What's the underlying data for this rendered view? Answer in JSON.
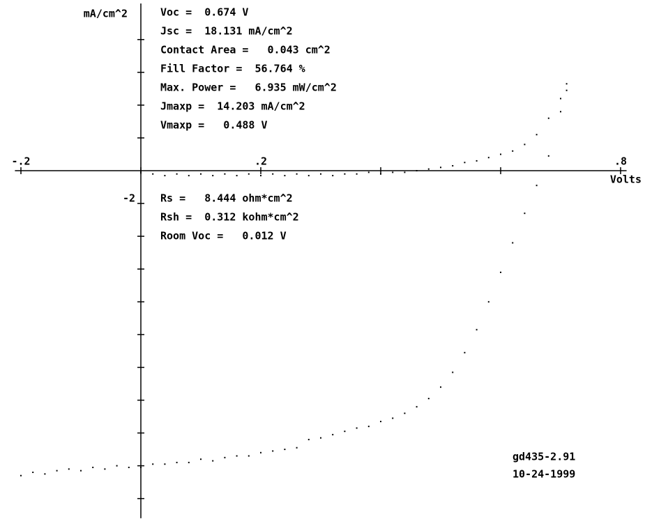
{
  "chart_data": {
    "type": "scatter",
    "x_label": "Volts",
    "y_label": "mA/cm^2",
    "xlim": [
      -0.21,
      0.81
    ],
    "ylim": [
      -21.2,
      10.2
    ],
    "xticks": [
      {
        "value": -0.2,
        "label": "-.2"
      },
      {
        "value": 0,
        "label": null
      },
      {
        "value": 0.2,
        "label": ".2"
      },
      {
        "value": 0.4,
        "label": null
      },
      {
        "value": 0.6,
        "label": null
      },
      {
        "value": 0.8,
        "label": ".8"
      }
    ],
    "yticks": [
      {
        "value": -20,
        "label": null
      },
      {
        "value": -18,
        "label": null
      },
      {
        "value": -16,
        "label": null
      },
      {
        "value": -14,
        "label": null
      },
      {
        "value": -12,
        "label": null
      },
      {
        "value": -10,
        "label": null
      },
      {
        "value": -8,
        "label": null
      },
      {
        "value": -6,
        "label": null
      },
      {
        "value": -4,
        "label": null
      },
      -2,
      {
        "value": 2,
        "label": null
      },
      {
        "value": 4,
        "label": null
      },
      {
        "value": 6,
        "label": null
      },
      {
        "value": 8,
        "label": null
      }
    ],
    "notes_top": [
      "Voc =  0.674 V",
      "Jsc =  18.131 mA/cm^2",
      "Contact Area =   0.043 cm^2",
      "Fill Factor =  56.764 %",
      "Max. Power =   6.935 mW/cm^2",
      "Jmaxp =  14.203 mA/cm^2",
      "Vmaxp =   0.488 V"
    ],
    "notes_middle": [
      "Rs =   8.444 ohm*cm^2",
      "Rsh =  0.312 kohm*cm^2",
      "Room Voc =   0.012 V"
    ],
    "sample_id": "gd435-2.91",
    "date": "10-24-1999",
    "series": [
      {
        "color": "#000000",
        "x": [
          -0.2,
          -0.18,
          -0.16,
          -0.14,
          -0.12,
          -0.1,
          -0.08,
          -0.06,
          -0.04,
          -0.02,
          0,
          0.02,
          0.04,
          0.06,
          0.08,
          0.1,
          0.12,
          0.14,
          0.16,
          0.18,
          0.2,
          0.22,
          0.24,
          0.26,
          0.28,
          0.3,
          0.32,
          0.34,
          0.36,
          0.38,
          0.4,
          0.42,
          0.44,
          0.46,
          0.48,
          0.5,
          0.52,
          0.54,
          0.56,
          0.58,
          0.6,
          0.62,
          0.64,
          0.66,
          0.68,
          0.7,
          0.71
        ],
        "values": [
          -18.6,
          -18.4,
          -18.5,
          -18.3,
          -18.2,
          -18.3,
          -18.1,
          -18.2,
          -18.0,
          -18.1,
          -18.1,
          -17.9,
          -17.9,
          -17.8,
          -17.8,
          -17.6,
          -17.7,
          -17.5,
          -17.4,
          -17.4,
          -17.2,
          -17.1,
          -17.0,
          -16.9,
          -16.4,
          -16.3,
          -16.1,
          -15.9,
          -15.7,
          -15.6,
          -15.3,
          -15.1,
          -14.8,
          -14.4,
          -13.9,
          -13.2,
          -12.3,
          -11.1,
          -9.7,
          -8.0,
          -6.2,
          -4.4,
          -2.6,
          -0.9,
          0.9,
          3.6,
          5.3
        ]
      },
      {
        "color": "#000000",
        "x": [
          0,
          0.02,
          0.04,
          0.06,
          0.08,
          0.1,
          0.12,
          0.14,
          0.16,
          0.18,
          0.2,
          0.22,
          0.24,
          0.26,
          0.28,
          0.3,
          0.32,
          0.34,
          0.36,
          0.38,
          0.4,
          0.42,
          0.44,
          0.46,
          0.48,
          0.5,
          0.52,
          0.54,
          0.56,
          0.58,
          0.6,
          0.62,
          0.64,
          0.66,
          0.68,
          0.7,
          0.71
        ],
        "values": [
          -0.1,
          -0.2,
          -0.3,
          -0.2,
          -0.3,
          -0.2,
          -0.3,
          -0.2,
          -0.3,
          -0.2,
          -0.3,
          -0.2,
          -0.3,
          -0.2,
          -0.3,
          -0.2,
          -0.3,
          -0.2,
          -0.2,
          -0.1,
          -0.2,
          -0.1,
          -0.1,
          0.0,
          0.1,
          0.2,
          0.3,
          0.5,
          0.6,
          0.8,
          1.0,
          1.2,
          1.6,
          2.2,
          3.2,
          4.4,
          4.9
        ]
      }
    ]
  }
}
